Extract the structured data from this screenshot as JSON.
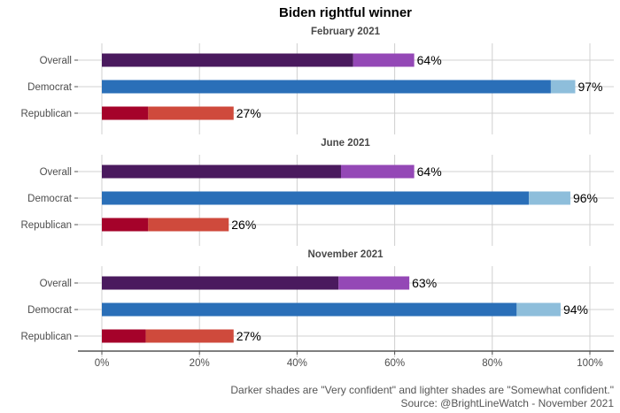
{
  "chart_data": {
    "type": "bar",
    "orientation": "horizontal",
    "stacked": true,
    "title": "Biden rightful winner",
    "xlim": [
      0,
      100
    ],
    "ticks": [
      0,
      20,
      40,
      60,
      80,
      100
    ],
    "tick_labels": [
      "0%",
      "20%",
      "40%",
      "60%",
      "80%",
      "100%"
    ],
    "grid": true,
    "categories": [
      "Overall",
      "Democrat",
      "Republican"
    ],
    "colors": {
      "Overall": {
        "very": "#4a1a5e",
        "somewhat": "#9448b6"
      },
      "Democrat": {
        "very": "#2a6fb8",
        "somewhat": "#8ebedb"
      },
      "Republican": {
        "very": "#a5022a",
        "somewhat": "#cf4a3c"
      }
    },
    "panels": [
      {
        "title": "February 2021",
        "rows": [
          {
            "group": "Overall",
            "very_confident": 51.5,
            "somewhat_confident": 12.5,
            "total_label": "64%"
          },
          {
            "group": "Democrat",
            "very_confident": 92,
            "somewhat_confident": 5,
            "total_label": "97%"
          },
          {
            "group": "Republican",
            "very_confident": 9.5,
            "somewhat_confident": 17.5,
            "total_label": "27%"
          }
        ]
      },
      {
        "title": "June 2021",
        "rows": [
          {
            "group": "Overall",
            "very_confident": 49,
            "somewhat_confident": 15,
            "total_label": "64%"
          },
          {
            "group": "Democrat",
            "very_confident": 87.5,
            "somewhat_confident": 8.5,
            "total_label": "96%"
          },
          {
            "group": "Republican",
            "very_confident": 9.5,
            "somewhat_confident": 16.5,
            "total_label": "26%"
          }
        ]
      },
      {
        "title": "November 2021",
        "rows": [
          {
            "group": "Overall",
            "very_confident": 48.5,
            "somewhat_confident": 14.5,
            "total_label": "63%"
          },
          {
            "group": "Democrat",
            "very_confident": 85,
            "somewhat_confident": 9,
            "total_label": "94%"
          },
          {
            "group": "Republican",
            "very_confident": 9,
            "somewhat_confident": 18,
            "total_label": "27%"
          }
        ]
      }
    ],
    "caption_line1": "Darker shades are \"Very confident\" and lighter shades are \"Somewhat confident.\"",
    "caption_line2": "Source: @BrightLineWatch - November 2021"
  }
}
